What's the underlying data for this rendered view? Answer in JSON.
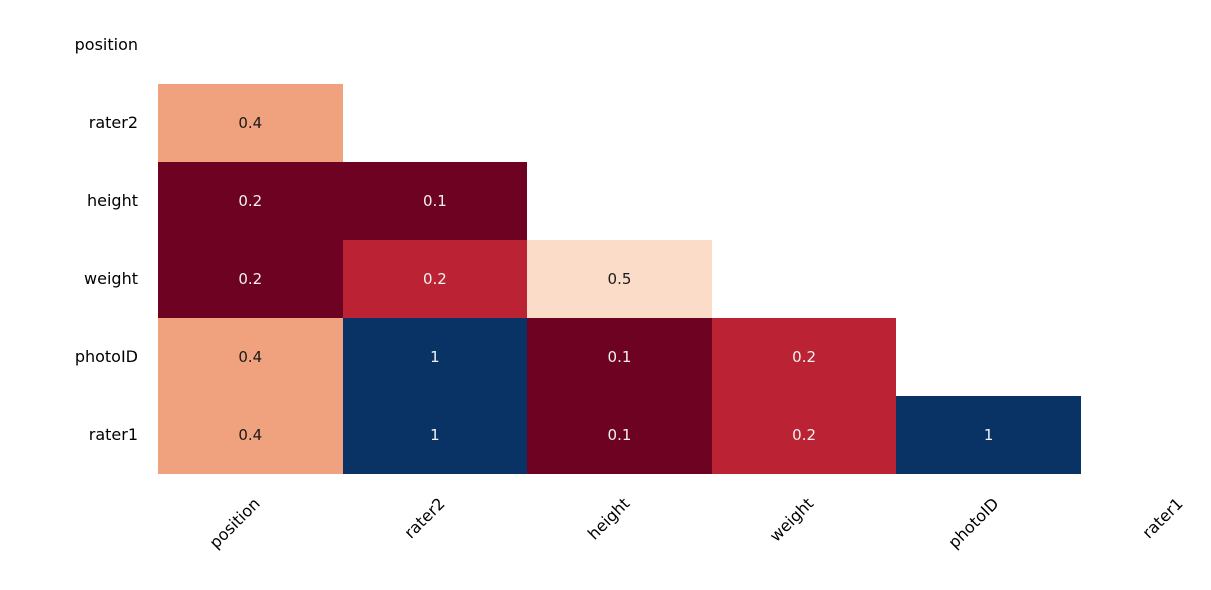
{
  "chart_data": {
    "type": "heatmap",
    "subtype": "lower-triangle-correlation-matrix",
    "title": "",
    "variables": [
      "position",
      "rater2",
      "height",
      "weight",
      "photoID",
      "rater1"
    ],
    "y_tick_labels": [
      "position",
      "rater2",
      "height",
      "weight",
      "photoID",
      "rater1"
    ],
    "x_tick_labels": [
      "position",
      "rater2",
      "height",
      "weight",
      "photoID",
      "rater1"
    ],
    "x_tick_rotation_deg": 45,
    "grid": false,
    "legend": "none",
    "colors": {
      "background": "#ffffff",
      "dark_red": "#6e0222",
      "red": "#bb2233",
      "salmon": "#f0a17e",
      "peach": "#fbdcc8",
      "navy": "#0a3365",
      "text_on_dark": "#f2f2f2",
      "text_on_light": "#1a1a1a",
      "axis_text": "#000000"
    },
    "cells": [
      {
        "row": "rater2",
        "col": "position",
        "value": "0.4",
        "bg": "#f0a17e",
        "fg": "#1a1a1a"
      },
      {
        "row": "height",
        "col": "position",
        "value": "0.2",
        "bg": "#6e0222",
        "fg": "#f2f2f2"
      },
      {
        "row": "height",
        "col": "rater2",
        "value": "0.1",
        "bg": "#6e0222",
        "fg": "#f2f2f2"
      },
      {
        "row": "weight",
        "col": "position",
        "value": "0.2",
        "bg": "#6e0222",
        "fg": "#f2f2f2"
      },
      {
        "row": "weight",
        "col": "rater2",
        "value": "0.2",
        "bg": "#bb2233",
        "fg": "#f2f2f2"
      },
      {
        "row": "weight",
        "col": "height",
        "value": "0.5",
        "bg": "#fbdcc8",
        "fg": "#1a1a1a"
      },
      {
        "row": "photoID",
        "col": "position",
        "value": "0.4",
        "bg": "#f0a17e",
        "fg": "#1a1a1a"
      },
      {
        "row": "photoID",
        "col": "rater2",
        "value": "1",
        "bg": "#0a3365",
        "fg": "#f2f2f2"
      },
      {
        "row": "photoID",
        "col": "height",
        "value": "0.1",
        "bg": "#6e0222",
        "fg": "#f2f2f2"
      },
      {
        "row": "photoID",
        "col": "weight",
        "value": "0.2",
        "bg": "#bb2233",
        "fg": "#f2f2f2"
      },
      {
        "row": "rater1",
        "col": "position",
        "value": "0.4",
        "bg": "#f0a17e",
        "fg": "#1a1a1a"
      },
      {
        "row": "rater1",
        "col": "rater2",
        "value": "1",
        "bg": "#0a3365",
        "fg": "#f2f2f2"
      },
      {
        "row": "rater1",
        "col": "height",
        "value": "0.1",
        "bg": "#6e0222",
        "fg": "#f2f2f2"
      },
      {
        "row": "rater1",
        "col": "weight",
        "value": "0.2",
        "bg": "#bb2233",
        "fg": "#f2f2f2"
      },
      {
        "row": "rater1",
        "col": "photoID",
        "value": "1",
        "bg": "#0a3365",
        "fg": "#f2f2f2"
      }
    ]
  }
}
